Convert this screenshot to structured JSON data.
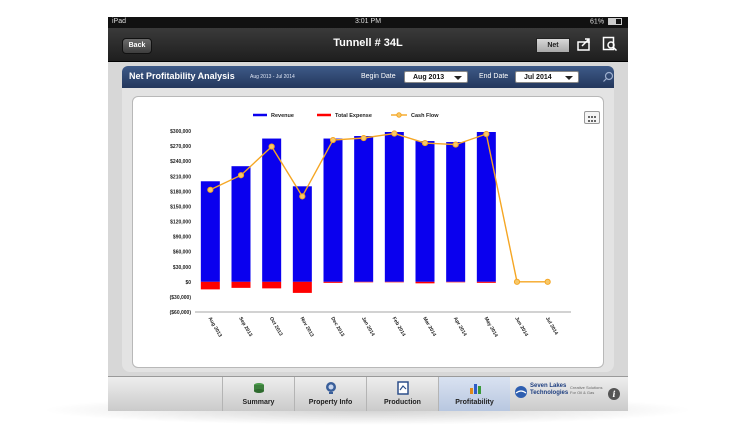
{
  "status_bar": {
    "device": "iPad",
    "time": "3:01 PM",
    "battery": "61%",
    "battery_level": 0.61
  },
  "nav": {
    "back_label": "Back",
    "title": "Tunnell # 34L",
    "net_label": "Net"
  },
  "panel": {
    "title": "Net Profitability Analysis",
    "range": "Aug 2013 - Jul 2014",
    "begin_label": "Begin Date",
    "begin_value": "Aug 2013",
    "end_label": "End Date",
    "end_value": "Jul 2014"
  },
  "chart_data": {
    "type": "bar",
    "categories": [
      "Aug 2013",
      "Sep 2013",
      "Oct 2013",
      "Nov 2013",
      "Dec 2013",
      "Jan 2014",
      "Feb 2014",
      "Mar 2014",
      "Apr 2014",
      "May 2014",
      "Jun 2014",
      "Jul 2014"
    ],
    "series": [
      {
        "name": "Revenue",
        "type": "bar",
        "color": "#0a00ee",
        "values": [
          200000,
          230000,
          285000,
          190000,
          285000,
          290000,
          298000,
          280000,
          278000,
          298000,
          0,
          0
        ]
      },
      {
        "name": "Total Expense",
        "type": "bar",
        "color": "#ff0000",
        "values": [
          -15000,
          -12000,
          -13000,
          -22000,
          -2000,
          -1000,
          -1000,
          -3000,
          -1000,
          -2000,
          0,
          0
        ]
      },
      {
        "name": "Cash Flow",
        "type": "line",
        "color": "#f5a623",
        "values": [
          183000,
          212000,
          269000,
          170000,
          282000,
          286000,
          295000,
          276000,
          273000,
          294000,
          0,
          0
        ]
      }
    ],
    "yticks": [
      "$300,000",
      "$270,000",
      "$240,000",
      "$210,000",
      "$180,000",
      "$150,000",
      "$120,000",
      "$90,000",
      "$60,000",
      "$30,000",
      "$0",
      "($30,000)",
      "($60,000)"
    ],
    "ylim": [
      -60000,
      300000
    ],
    "legend_position": "top"
  },
  "tabs": [
    {
      "label": "Summary",
      "icon": "summary-icon"
    },
    {
      "label": "Property Info",
      "icon": "property-info-icon"
    },
    {
      "label": "Production",
      "icon": "production-icon"
    },
    {
      "label": "Profitability",
      "icon": "profitability-icon"
    }
  ],
  "brand": {
    "name_line1": "Seven Lakes",
    "name_line2": "Technologies",
    "tagline": "Creative Solutions For Oil & Gas"
  }
}
